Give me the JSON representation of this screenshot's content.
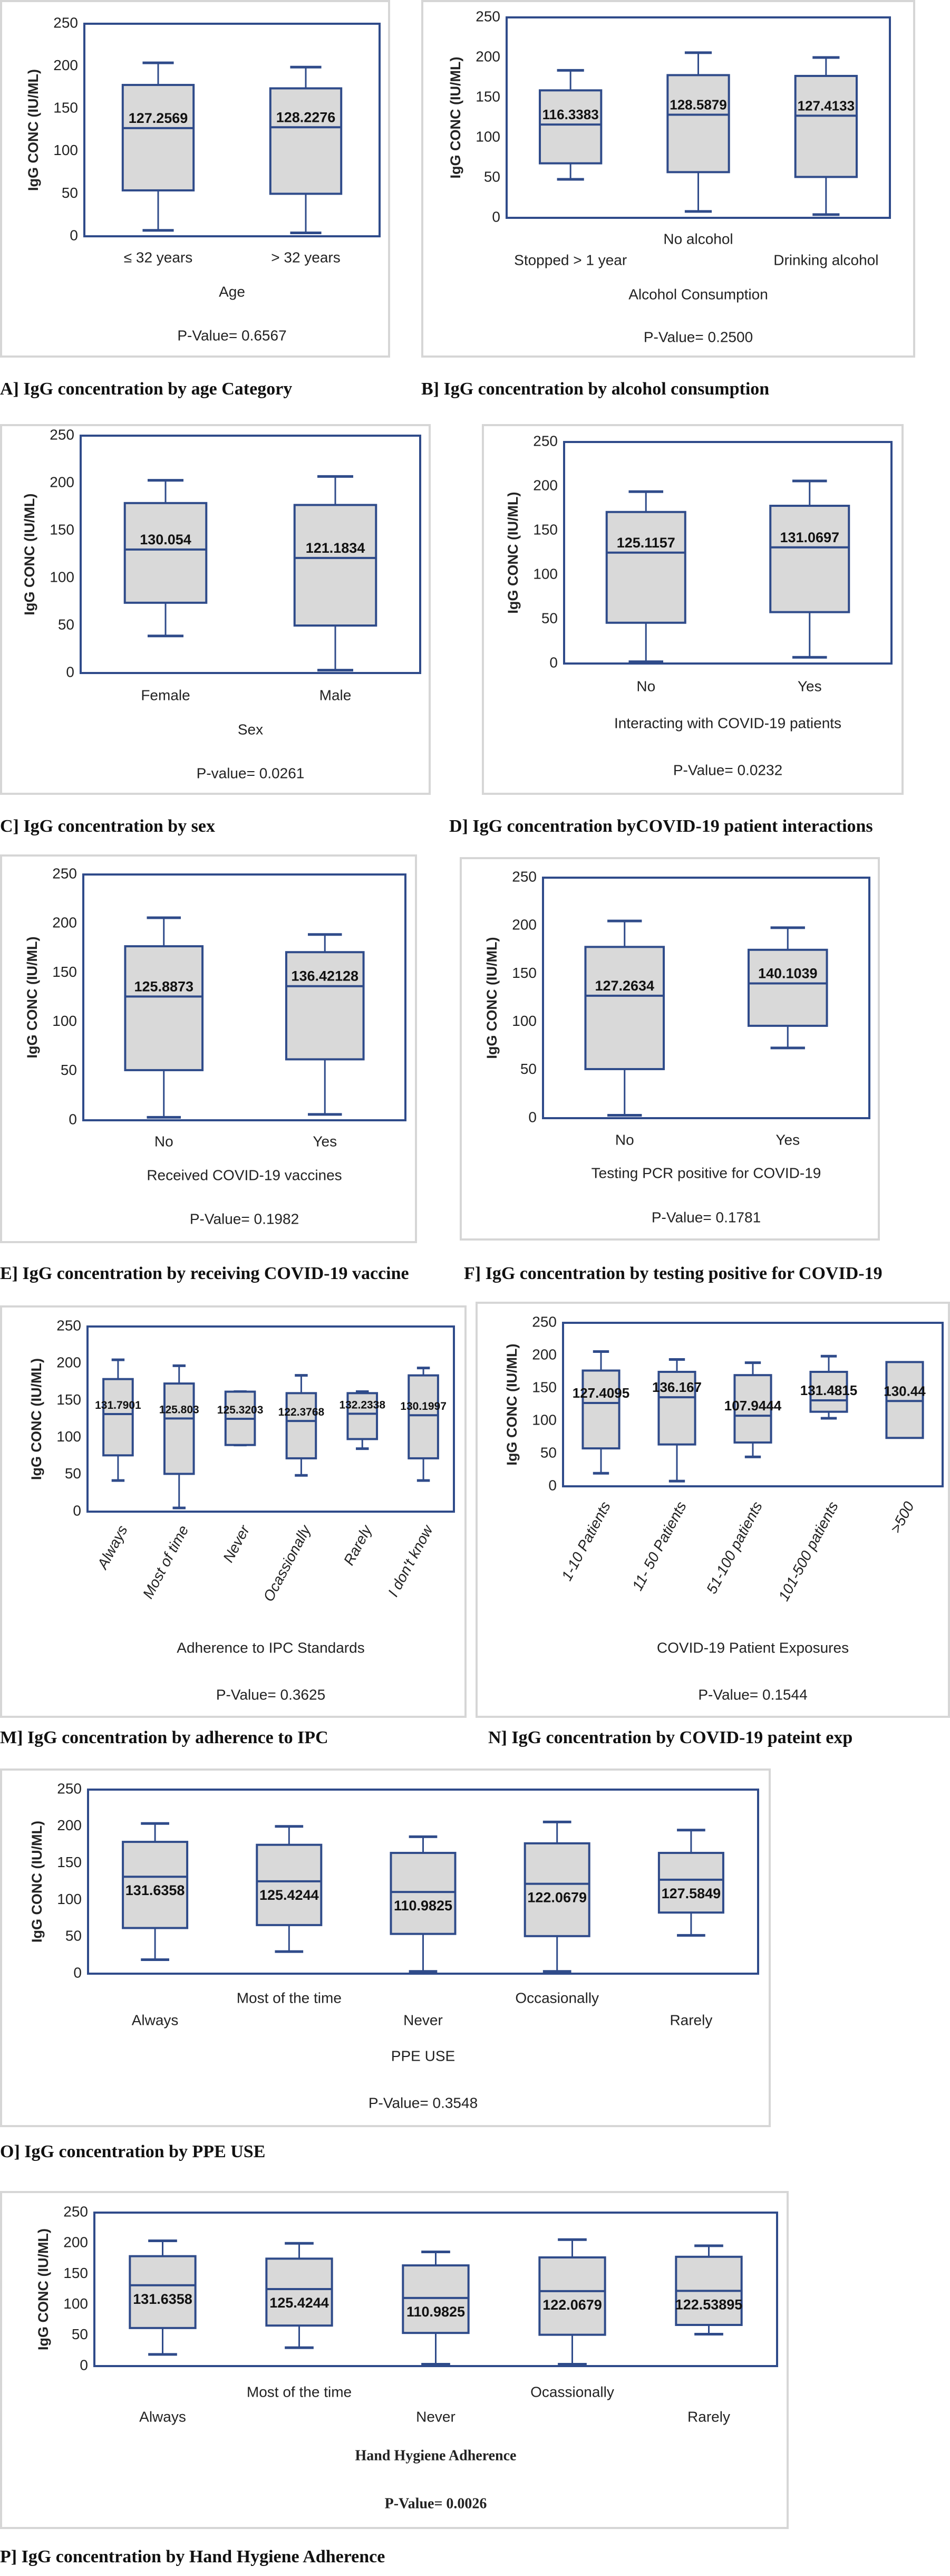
{
  "colors": {
    "frame": "#2f4b8a",
    "box_fill": "#d9d9d9",
    "panel_border": "#d6d6d6",
    "text": "#222222"
  },
  "chart_data": [
    {
      "panel": "A",
      "type": "box",
      "caption": "A] IgG concentration by age Category",
      "ylabel": "IgG CONC (IU/ML)",
      "ylim": [
        0,
        250
      ],
      "yticks": [
        0,
        50,
        100,
        150,
        200,
        250
      ],
      "xlabel": "Age",
      "p_value": "P-Value= 0.6567",
      "grid": false,
      "categories": [
        "≤ 32 years",
        "> 32 years"
      ],
      "boxes": [
        {
          "min": 7,
          "q1": 54,
          "median": 127.2569,
          "q3": 178,
          "max": 204,
          "label": "127.2569"
        },
        {
          "min": 4,
          "q1": 50,
          "median": 128.2276,
          "q3": 174,
          "max": 199,
          "label": "128.2276"
        }
      ]
    },
    {
      "panel": "B",
      "type": "box",
      "caption": "B] IgG concentration by alcohol consumption",
      "ylabel": "IgG CONC (IU/ML)",
      "ylim": [
        0,
        250
      ],
      "yticks": [
        0,
        50,
        100,
        150,
        200,
        250
      ],
      "xlabel": "Alcohol Consumption",
      "p_value": "P-Value=  0.2500",
      "grid": false,
      "categories": [
        "Stopped > 1 year",
        "No alcohol",
        "Drinking alcohol"
      ],
      "boxes": [
        {
          "min": 48,
          "q1": 68,
          "median": 116.3383,
          "q3": 159,
          "max": 184,
          "label": "116.3383"
        },
        {
          "min": 8,
          "q1": 57,
          "median": 128.5879,
          "q3": 178,
          "max": 206,
          "label": "128.5879"
        },
        {
          "min": 4,
          "q1": 51,
          "median": 127.4133,
          "q3": 177,
          "max": 200,
          "label": "127.4133"
        }
      ]
    },
    {
      "panel": "C",
      "type": "box",
      "caption": "C] IgG concentration by sex",
      "ylabel": "IgG CONC (IU/ML)",
      "ylim": [
        0,
        250
      ],
      "yticks": [
        0,
        50,
        100,
        150,
        200,
        250
      ],
      "xlabel": "Sex",
      "p_value": "P-value= 0.0261",
      "grid": false,
      "categories": [
        "Female",
        "Male"
      ],
      "boxes": [
        {
          "min": 39,
          "q1": 74,
          "median": 130.054,
          "q3": 179,
          "max": 203,
          "label": "130.054"
        },
        {
          "min": 3,
          "q1": 50,
          "median": 121.1834,
          "q3": 177,
          "max": 207,
          "label": "121.1834"
        }
      ]
    },
    {
      "panel": "D",
      "type": "box",
      "caption": "D] IgG concentration byCOVID-19 patient interactions",
      "ylabel": "IgG CONC (IU/ML)",
      "ylim": [
        0,
        250
      ],
      "yticks": [
        0,
        50,
        100,
        150,
        200,
        250
      ],
      "xlabel": "Interacting with COVID-19 patients",
      "p_value": "P-Value= 0.0232",
      "grid": false,
      "categories": [
        "No",
        "Yes"
      ],
      "boxes": [
        {
          "min": 2,
          "q1": 46,
          "median": 125.1157,
          "q3": 171,
          "max": 194,
          "label": "125.1157"
        },
        {
          "min": 7,
          "q1": 58,
          "median": 131.0697,
          "q3": 178,
          "max": 206,
          "label": "131.0697"
        }
      ]
    },
    {
      "panel": "E",
      "type": "box",
      "caption": "E] IgG concentration by receiving COVID-19 vaccine",
      "ylabel": "IgG CONC (IU/ML)",
      "ylim": [
        0,
        250
      ],
      "yticks": [
        0,
        50,
        100,
        150,
        200,
        250
      ],
      "xlabel": "Received COVID-19 vaccines",
      "p_value": "P-Value=  0.1982",
      "grid": false,
      "categories": [
        "No",
        "Yes"
      ],
      "boxes": [
        {
          "min": 3,
          "q1": 51,
          "median": 125.8873,
          "q3": 177,
          "max": 206,
          "label": "125.8873"
        },
        {
          "min": 6,
          "q1": 62,
          "median": 136.42128,
          "q3": 171,
          "max": 189,
          "label": "136.42128"
        }
      ]
    },
    {
      "panel": "F",
      "type": "box",
      "caption": "F] IgG concentration by testing positive for COVID-19",
      "ylabel": "IgG CONC (IU/ML)",
      "ylim": [
        0,
        250
      ],
      "yticks": [
        0,
        50,
        100,
        150,
        200,
        250
      ],
      "xlabel": "Testing PCR positive for COVID-19",
      "p_value": "P-Value=  0.1781",
      "grid": false,
      "categories": [
        "No",
        "Yes"
      ],
      "boxes": [
        {
          "min": 3,
          "q1": 51,
          "median": 127.2634,
          "q3": 178,
          "max": 205,
          "label": "127.2634"
        },
        {
          "min": 73,
          "q1": 96,
          "median": 140.1039,
          "q3": 175,
          "max": 198,
          "label": "140.1039"
        }
      ]
    },
    {
      "panel": "M",
      "type": "box",
      "caption": "M] IgG concentration by adherence to IPC",
      "ylabel": "IgG CONC (IU/ML)",
      "ylim": [
        0,
        250
      ],
      "yticks": [
        0,
        50,
        100,
        150,
        200,
        250
      ],
      "xlabel": "Adherence to IPC Standards",
      "p_value": "P-Value=  0.3625",
      "grid": false,
      "categories": [
        "Always",
        "Most of time",
        "Never",
        "Ocassionally",
        "Rarely",
        "I don't know"
      ],
      "boxes": [
        {
          "min": 42,
          "q1": 76,
          "median": 131.7901,
          "q3": 179,
          "max": 205,
          "label": "131.7901"
        },
        {
          "min": 5,
          "q1": 51,
          "median": 125.803,
          "q3": 173,
          "max": 197,
          "label": "125.803"
        },
        {
          "min": 90,
          "q1": 90,
          "median": 125.3203,
          "q3": 162,
          "max": 162,
          "label": "125.3203"
        },
        {
          "min": 49,
          "q1": 72,
          "median": 122.3768,
          "q3": 160,
          "max": 184,
          "label": "122.3768"
        },
        {
          "min": 85,
          "q1": 98,
          "median": 132.2338,
          "q3": 160,
          "max": 162,
          "label": "132.2338"
        },
        {
          "min": 42,
          "q1": 72,
          "median": 130.1997,
          "q3": 184,
          "max": 194,
          "label": "130.1997"
        }
      ]
    },
    {
      "panel": "N",
      "type": "box",
      "caption": "N] IgG concentration by COVID-19 pateint exp",
      "ylabel": "IgG CONC (IU/ML)",
      "ylim": [
        0,
        250
      ],
      "yticks": [
        0,
        50,
        100,
        150,
        200,
        250
      ],
      "xlabel": "COVID-19 Patient  Exposures",
      "p_value": "P-Value=  0.1544",
      "grid": false,
      "categories": [
        "1-10 Patients",
        "11- 50 Patients",
        "51-100 patients",
        "101-500 patients",
        ">500"
      ],
      "boxes": [
        {
          "min": 20,
          "q1": 58,
          "median": 127.4095,
          "q3": 177,
          "max": 206,
          "label": "127.4095"
        },
        {
          "min": 8,
          "q1": 64,
          "median": 136.167,
          "q3": 175,
          "max": 194,
          "label": "136.167"
        },
        {
          "min": 45,
          "q1": 67,
          "median": 107.9444,
          "q3": 170,
          "max": 189,
          "label": "107.9444"
        },
        {
          "min": 104,
          "q1": 114,
          "median": 131.4815,
          "q3": 175,
          "max": 199,
          "label": "131.4815"
        },
        {
          "min": null,
          "q1": 74,
          "median": 130.44,
          "q3": 190,
          "max": null,
          "label": "130.44"
        }
      ]
    },
    {
      "panel": "O",
      "type": "box",
      "caption": "O] IgG concentration by PPE USE",
      "ylabel": "IgG CONC (IU/ML)",
      "ylim": [
        0,
        250
      ],
      "yticks": [
        0,
        50,
        100,
        150,
        200,
        250
      ],
      "xlabel": "PPE USE",
      "p_value": "P-Value= 0.3548",
      "grid": false,
      "categories": [
        "Always",
        "Most of the time",
        "Never",
        "Occasionally",
        "Rarely"
      ],
      "boxes": [
        {
          "min": 19,
          "q1": 62,
          "median": 131.6358,
          "q3": 179,
          "max": 204,
          "label": "131.6358"
        },
        {
          "min": 30,
          "q1": 66,
          "median": 125.4244,
          "q3": 175,
          "max": 200,
          "label": "125.4244"
        },
        {
          "min": 3,
          "q1": 54,
          "median": 110.9825,
          "q3": 164,
          "max": 186,
          "label": "110.9825"
        },
        {
          "min": 3,
          "q1": 51,
          "median": 122.0679,
          "q3": 177,
          "max": 206,
          "label": "122.0679"
        },
        {
          "min": 52,
          "q1": 83,
          "median": 127.5849,
          "q3": 164,
          "max": 195,
          "label": "127.5849"
        }
      ]
    },
    {
      "panel": "P",
      "type": "box",
      "caption": "P] IgG concentration by Hand Hygiene Adherence",
      "ylabel": "IgG CONC (IU/ML)",
      "ylim": [
        0,
        250
      ],
      "yticks": [
        0,
        50,
        100,
        150,
        200,
        250
      ],
      "xlabel": "Hand Hygiene Adherence",
      "p_value": "P-Value=  0.0026",
      "grid": false,
      "categories": [
        "Always",
        "Most of the time",
        "Never",
        "Ocassionally",
        "Rarely"
      ],
      "boxes": [
        {
          "min": 19,
          "q1": 62,
          "median": 131.6358,
          "q3": 179,
          "max": 204,
          "label": "131.6358"
        },
        {
          "min": 30,
          "q1": 66,
          "median": 125.4244,
          "q3": 175,
          "max": 200,
          "label": "125.4244"
        },
        {
          "min": 3,
          "q1": 54,
          "median": 110.9825,
          "q3": 164,
          "max": 186,
          "label": "110.9825"
        },
        {
          "min": 3,
          "q1": 51,
          "median": 122.0679,
          "q3": 177,
          "max": 206,
          "label": "122.0679"
        },
        {
          "min": 52,
          "q1": 67,
          "median": 122.53895,
          "q3": 178,
          "max": 196,
          "label": "122.53895"
        }
      ]
    }
  ]
}
